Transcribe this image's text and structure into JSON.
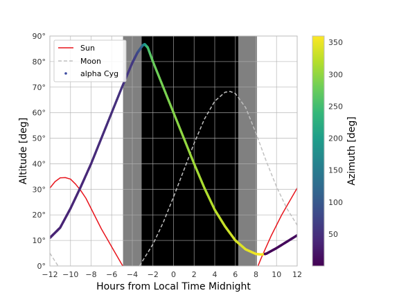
{
  "chart_data": {
    "type": "scatter",
    "title": "",
    "xlabel": "Hours from Local Time Midnight",
    "ylabel": "Altitude [deg]",
    "xlim": [
      -12,
      12
    ],
    "ylim": [
      0,
      90
    ],
    "xticks": [
      -12,
      -10,
      -8,
      -6,
      -4,
      -2,
      0,
      2,
      4,
      6,
      8,
      10,
      12
    ],
    "xtick_labels": [
      "−12",
      "−10",
      "−8",
      "−6",
      "−4",
      "−2",
      "0",
      "2",
      "4",
      "6",
      "8",
      "10",
      "12"
    ],
    "yticks": [
      0,
      10,
      20,
      30,
      40,
      50,
      60,
      70,
      80,
      90
    ],
    "ytick_labels": [
      "0°",
      "10°",
      "20°",
      "30°",
      "40°",
      "50°",
      "60°",
      "70°",
      "80°",
      "90°"
    ],
    "grid": true,
    "legend_position": "upper-left",
    "twilight_bands": [
      {
        "from": -4.9,
        "to": -3.1,
        "color": "#808080"
      },
      {
        "from": -3.1,
        "to": 6.3,
        "color": "#000000"
      },
      {
        "from": 6.3,
        "to": 8.1,
        "color": "#808080"
      }
    ],
    "series": [
      {
        "name": "Sun",
        "style": "solid",
        "color": "#e8141c",
        "segments": [
          [
            [
              -12,
              30.5
            ],
            [
              -11.5,
              33
            ],
            [
              -11,
              34.5
            ],
            [
              -10.5,
              34.6
            ],
            [
              -10,
              34
            ],
            [
              -9.5,
              32
            ],
            [
              -9,
              29.5
            ],
            [
              -8.5,
              26.5
            ],
            [
              -8,
              22.5
            ],
            [
              -7.5,
              18.5
            ],
            [
              -7,
              14.5
            ],
            [
              -6.5,
              11
            ],
            [
              -6,
              7.5
            ],
            [
              -5.5,
              4
            ],
            [
              -5,
              0.5
            ],
            [
              -4.9,
              0
            ]
          ],
          [
            [
              8.2,
              0
            ],
            [
              8.5,
              3
            ],
            [
              9,
              7.5
            ],
            [
              9.5,
              12
            ],
            [
              10,
              16
            ],
            [
              10.5,
              20
            ],
            [
              11,
              23.5
            ],
            [
              11.5,
              27
            ],
            [
              12,
              30.5
            ]
          ]
        ]
      },
      {
        "name": "Moon",
        "style": "dashed",
        "color": "#c0c0c0",
        "segments": [
          [
            [
              -12,
              5
            ],
            [
              -11.6,
              2.5
            ],
            [
              -11.2,
              0
            ]
          ],
          [
            [
              -3.3,
              0
            ],
            [
              -3,
              2
            ],
            [
              -2,
              8.5
            ],
            [
              -1,
              17
            ],
            [
              0,
              27
            ],
            [
              1,
              37.5
            ],
            [
              2,
              48
            ],
            [
              3,
              57.5
            ],
            [
              4,
              64.5
            ],
            [
              5,
              68
            ],
            [
              5.5,
              68.3
            ],
            [
              6,
              67.5
            ],
            [
              7,
              62
            ],
            [
              8,
              52
            ],
            [
              9,
              41
            ],
            [
              10,
              31
            ],
            [
              11,
              22.5
            ],
            [
              12,
              16
            ]
          ]
        ]
      },
      {
        "name": "alpha Cyg",
        "style": "points",
        "color_by": "azimuth",
        "points": [
          [
            -12,
            11,
            35
          ],
          [
            -11,
            15,
            36
          ],
          [
            -10,
            22.5,
            38
          ],
          [
            -9,
            31,
            40
          ],
          [
            -8,
            40,
            42
          ],
          [
            -7,
            50,
            45
          ],
          [
            -6,
            60,
            48
          ],
          [
            -5,
            70,
            52
          ],
          [
            -4,
            79.5,
            60
          ],
          [
            -3.5,
            83.5,
            75
          ],
          [
            -3,
            86.3,
            120
          ],
          [
            -2.8,
            86.8,
            180
          ],
          [
            -2.5,
            85.5,
            250
          ],
          [
            -2,
            80,
            275
          ],
          [
            -1,
            70,
            285
          ],
          [
            0,
            60,
            292
          ],
          [
            1,
            50,
            300
          ],
          [
            2,
            40,
            308
          ],
          [
            3,
            30.5,
            315
          ],
          [
            4,
            22,
            322
          ],
          [
            5,
            15.5,
            330
          ],
          [
            6,
            10,
            337
          ],
          [
            7,
            6.5,
            345
          ],
          [
            8,
            4.7,
            352
          ],
          [
            8.6,
            4.5,
            356
          ],
          [
            9,
            4.8,
            2
          ],
          [
            10,
            7,
            6
          ],
          [
            11,
            9.5,
            9
          ],
          [
            12,
            12,
            12
          ]
        ]
      }
    ],
    "colorbar": {
      "label": "Azimuth [deg]",
      "range": [
        0,
        360
      ],
      "ticks": [
        50,
        100,
        150,
        200,
        250,
        300,
        350
      ],
      "tick_labels": [
        "50",
        "100",
        "150",
        "200",
        "250",
        "300",
        "350"
      ],
      "colormap": "viridis",
      "colormap_stops": [
        "#440154",
        "#482878",
        "#3e4989",
        "#31688e",
        "#26828e",
        "#1f9e89",
        "#35b779",
        "#6ece58",
        "#b5de2b",
        "#fde725"
      ]
    },
    "legend": [
      {
        "label": "Sun",
        "marker": "line",
        "color": "#e8141c"
      },
      {
        "label": "Moon",
        "marker": "dashed",
        "color": "#c0c0c0"
      },
      {
        "label": "alpha Cyg",
        "marker": "dot",
        "color": "#3b4ba0"
      }
    ]
  }
}
